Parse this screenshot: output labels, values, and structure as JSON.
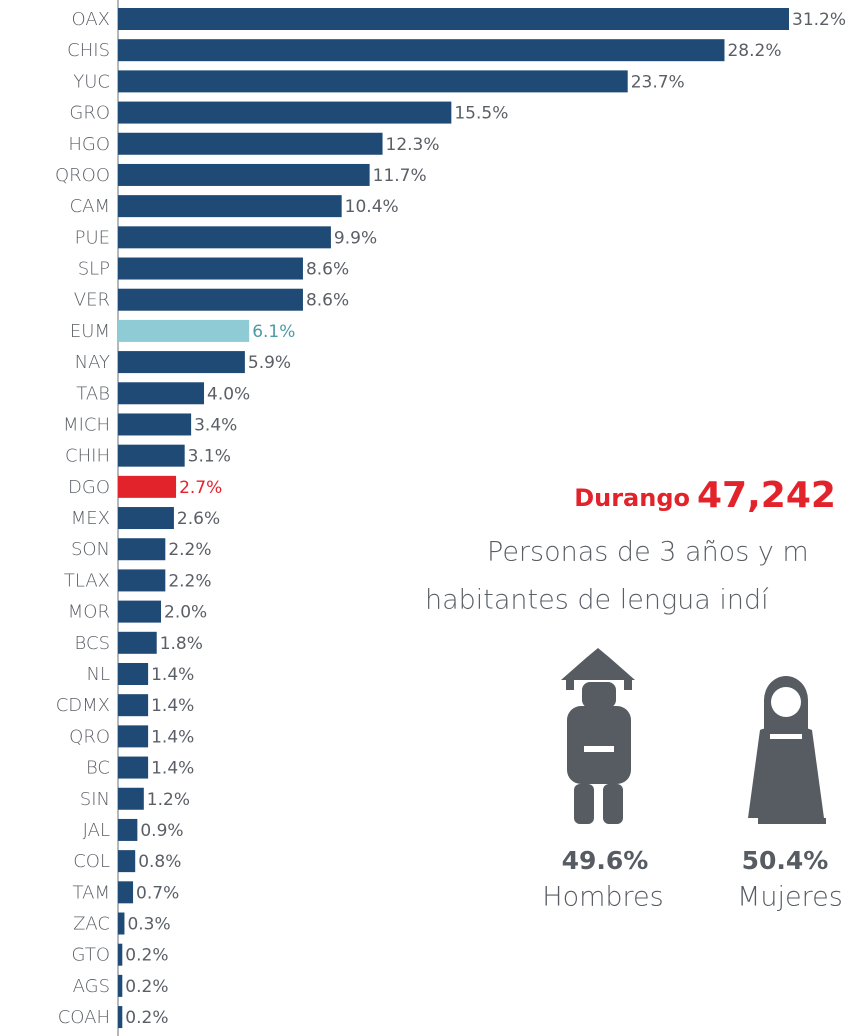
{
  "chart_data": {
    "type": "hbar",
    "categories": [
      "OAX",
      "CHIS",
      "YUC",
      "GRO",
      "HGO",
      "QROO",
      "CAM",
      "PUE",
      "SLP",
      "VER",
      "EUM",
      "NAY",
      "TAB",
      "MICH",
      "CHIH",
      "DGO",
      "MEX",
      "SON",
      "TLAX",
      "MOR",
      "BCS",
      "NL",
      "CDMX",
      "QRO",
      "BC",
      "SIN",
      "JAL",
      "COL",
      "TAM",
      "ZAC",
      "GTO",
      "AGS",
      "COAH"
    ],
    "values": [
      31.2,
      28.2,
      23.7,
      15.5,
      12.3,
      11.7,
      10.4,
      9.9,
      8.6,
      8.6,
      6.1,
      5.9,
      4.0,
      3.4,
      3.1,
      2.7,
      2.6,
      2.2,
      2.2,
      2.0,
      1.8,
      1.4,
      1.4,
      1.4,
      1.4,
      1.2,
      0.9,
      0.8,
      0.7,
      0.3,
      0.2,
      0.2,
      0.2
    ],
    "value_labels": [
      "31.2%",
      "28.2%",
      "23.7%",
      "15.5%",
      "12.3%",
      "11.7%",
      "10.4%",
      "9.9%",
      "8.6%",
      "8.6%",
      "6.1%",
      "5.9%",
      "4.0%",
      "3.4%",
      "3.1%",
      "2.7%",
      "2.6%",
      "2.2%",
      "2.2%",
      "2.0%",
      "1.8%",
      "1.4%",
      "1.4%",
      "1.4%",
      "1.4%",
      "1.2%",
      "0.9%",
      "0.8%",
      "0.7%",
      "0.3%",
      "0.2%",
      "0.2%",
      "0.2%"
    ],
    "colors": [
      "#1f4a75",
      "#1f4a75",
      "#1f4a75",
      "#1f4a75",
      "#1f4a75",
      "#1f4a75",
      "#1f4a75",
      "#1f4a75",
      "#1f4a75",
      "#1f4a75",
      "#8ecbd4",
      "#1f4a75",
      "#1f4a75",
      "#1f4a75",
      "#1f4a75",
      "#e2232b",
      "#1f4a75",
      "#1f4a75",
      "#1f4a75",
      "#1f4a75",
      "#1f4a75",
      "#1f4a75",
      "#1f4a75",
      "#1f4a75",
      "#1f4a75",
      "#1f4a75",
      "#1f4a75",
      "#1f4a75",
      "#1f4a75",
      "#1f4a75",
      "#1f4a75",
      "#1f4a75",
      "#1f4a75"
    ],
    "value_label_colors": [
      "#5a5f66",
      "#5a5f66",
      "#5a5f66",
      "#5a5f66",
      "#5a5f66",
      "#5a5f66",
      "#5a5f66",
      "#5a5f66",
      "#5a5f66",
      "#5a5f66",
      "#4b9aa6",
      "#5a5f66",
      "#5a5f66",
      "#5a5f66",
      "#5a5f66",
      "#e2232b",
      "#5a5f66",
      "#5a5f66",
      "#5a5f66",
      "#5a5f66",
      "#5a5f66",
      "#5a5f66",
      "#5a5f66",
      "#5a5f66",
      "#5a5f66",
      "#5a5f66",
      "#5a5f66",
      "#5a5f66",
      "#5a5f66",
      "#5a5f66",
      "#5a5f66",
      "#5a5f66",
      "#5a5f66"
    ],
    "xlim": [
      0,
      31.2
    ]
  },
  "infographic": {
    "state": "Durango",
    "total": "47,242",
    "description": [
      "Personas de 3 años y m",
      "habitantes de lengua indí"
    ],
    "men": {
      "percent": "49.6%",
      "label": "Hombres"
    },
    "women": {
      "percent": "50.4%",
      "label": "Mujeres"
    }
  }
}
